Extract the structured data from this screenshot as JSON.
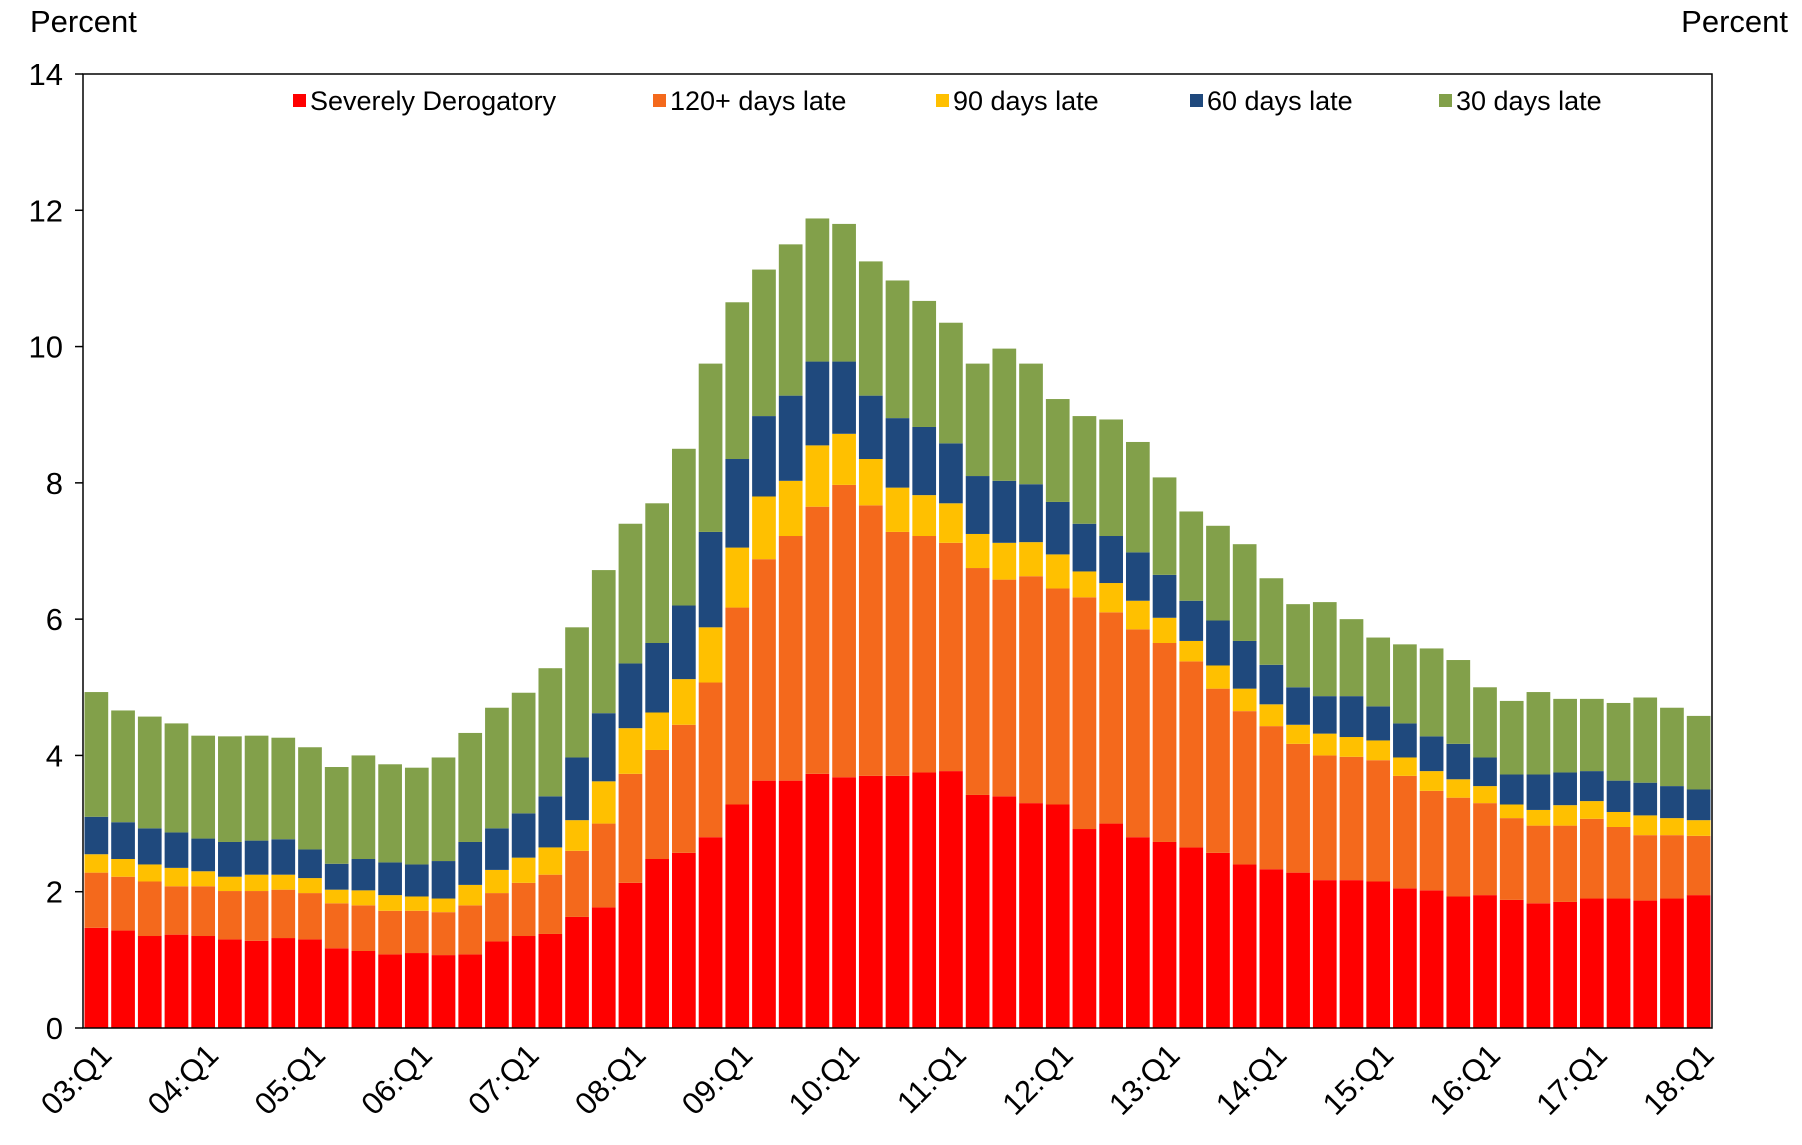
{
  "chart_data": {
    "type": "stacked-bar",
    "y_label": "Percent",
    "y2_label": "Percent",
    "categories": [
      "03:Q1",
      null,
      null,
      null,
      "04:Q1",
      null,
      null,
      null,
      "05:Q1",
      null,
      null,
      null,
      "06:Q1",
      null,
      null,
      null,
      "07:Q1",
      null,
      null,
      null,
      "08:Q1",
      null,
      null,
      null,
      "09:Q1",
      null,
      null,
      null,
      "10:Q1",
      null,
      null,
      null,
      "11:Q1",
      null,
      null,
      null,
      "12:Q1",
      null,
      null,
      null,
      "13:Q1",
      null,
      null,
      null,
      "14:Q1",
      null,
      null,
      null,
      "15:Q1",
      null,
      null,
      null,
      "16:Q1",
      null,
      null,
      null,
      "17:Q1",
      null,
      null,
      null,
      "18:Q1"
    ],
    "series": [
      {
        "name": "Severely Derogatory",
        "color": "#ff0000",
        "values": [
          1.47,
          1.43,
          1.35,
          1.37,
          1.35,
          1.3,
          1.28,
          1.32,
          1.3,
          1.17,
          1.13,
          1.08,
          1.1,
          1.07,
          1.08,
          1.27,
          1.35,
          1.38,
          1.63,
          1.77,
          2.13,
          2.48,
          2.57,
          2.8,
          3.28,
          3.63,
          3.63,
          3.73,
          3.68,
          3.7,
          3.7,
          3.75,
          3.77,
          3.42,
          3.4,
          3.3,
          3.28,
          2.92,
          3.0,
          2.8,
          2.73,
          2.65,
          2.57,
          2.4,
          2.33,
          2.28,
          2.17,
          2.17,
          2.15,
          2.05,
          2.02,
          1.93,
          1.95,
          1.88,
          1.83,
          1.85,
          1.9,
          1.9,
          1.87,
          1.9,
          1.95
        ]
      },
      {
        "name": "120+ days late",
        "color": "#f4691c",
        "values": [
          0.81,
          0.79,
          0.8,
          0.71,
          0.73,
          0.71,
          0.73,
          0.71,
          0.68,
          0.66,
          0.67,
          0.64,
          0.62,
          0.63,
          0.72,
          0.71,
          0.78,
          0.87,
          0.97,
          1.23,
          1.6,
          1.6,
          1.88,
          2.27,
          2.89,
          3.25,
          3.59,
          3.92,
          4.29,
          3.97,
          3.58,
          3.47,
          3.35,
          3.33,
          3.18,
          3.33,
          3.17,
          3.4,
          3.1,
          3.05,
          2.92,
          2.73,
          2.41,
          2.25,
          2.1,
          1.89,
          1.83,
          1.81,
          1.78,
          1.65,
          1.46,
          1.45,
          1.35,
          1.2,
          1.14,
          1.12,
          1.17,
          1.05,
          0.96,
          0.93,
          0.87
        ]
      },
      {
        "name": "90 days late",
        "color": "#ffc000",
        "values": [
          0.27,
          0.26,
          0.25,
          0.27,
          0.22,
          0.21,
          0.24,
          0.22,
          0.22,
          0.2,
          0.22,
          0.23,
          0.21,
          0.2,
          0.3,
          0.34,
          0.37,
          0.4,
          0.45,
          0.62,
          0.67,
          0.55,
          0.67,
          0.81,
          0.88,
          0.92,
          0.81,
          0.9,
          0.75,
          0.68,
          0.65,
          0.6,
          0.58,
          0.5,
          0.54,
          0.5,
          0.5,
          0.38,
          0.43,
          0.42,
          0.37,
          0.3,
          0.34,
          0.33,
          0.32,
          0.28,
          0.32,
          0.29,
          0.29,
          0.27,
          0.29,
          0.27,
          0.25,
          0.2,
          0.23,
          0.3,
          0.26,
          0.22,
          0.29,
          0.25,
          0.23
        ]
      },
      {
        "name": "60 days late",
        "color": "#1f497d",
        "values": [
          0.55,
          0.54,
          0.53,
          0.52,
          0.48,
          0.51,
          0.5,
          0.52,
          0.42,
          0.38,
          0.46,
          0.48,
          0.47,
          0.55,
          0.63,
          0.61,
          0.65,
          0.75,
          0.92,
          1.0,
          0.95,
          1.02,
          1.08,
          1.4,
          1.3,
          1.18,
          1.25,
          1.23,
          1.06,
          0.93,
          1.02,
          1.0,
          0.88,
          0.85,
          0.91,
          0.85,
          0.77,
          0.7,
          0.69,
          0.71,
          0.63,
          0.59,
          0.66,
          0.7,
          0.58,
          0.55,
          0.55,
          0.6,
          0.5,
          0.5,
          0.51,
          0.52,
          0.42,
          0.44,
          0.52,
          0.48,
          0.44,
          0.46,
          0.48,
          0.47,
          0.45
        ]
      },
      {
        "name": "30 days late",
        "color": "#82a04a",
        "values": [
          1.83,
          1.64,
          1.64,
          1.6,
          1.51,
          1.55,
          1.54,
          1.49,
          1.5,
          1.42,
          1.52,
          1.44,
          1.42,
          1.52,
          1.6,
          1.77,
          1.77,
          1.88,
          1.91,
          2.1,
          2.05,
          2.05,
          2.3,
          2.47,
          2.3,
          2.15,
          2.22,
          2.1,
          2.02,
          1.97,
          2.02,
          1.85,
          1.77,
          1.65,
          1.94,
          1.77,
          1.51,
          1.58,
          1.71,
          1.62,
          1.43,
          1.31,
          1.39,
          1.42,
          1.27,
          1.22,
          1.38,
          1.13,
          1.01,
          1.16,
          1.29,
          1.23,
          1.03,
          1.08,
          1.21,
          1.08,
          1.06,
          1.14,
          1.25,
          1.15,
          1.08
        ]
      }
    ],
    "ylim": [
      0,
      14
    ],
    "yticks": [
      0,
      2,
      4,
      6,
      8,
      10,
      12,
      14
    ],
    "legend": "top"
  }
}
